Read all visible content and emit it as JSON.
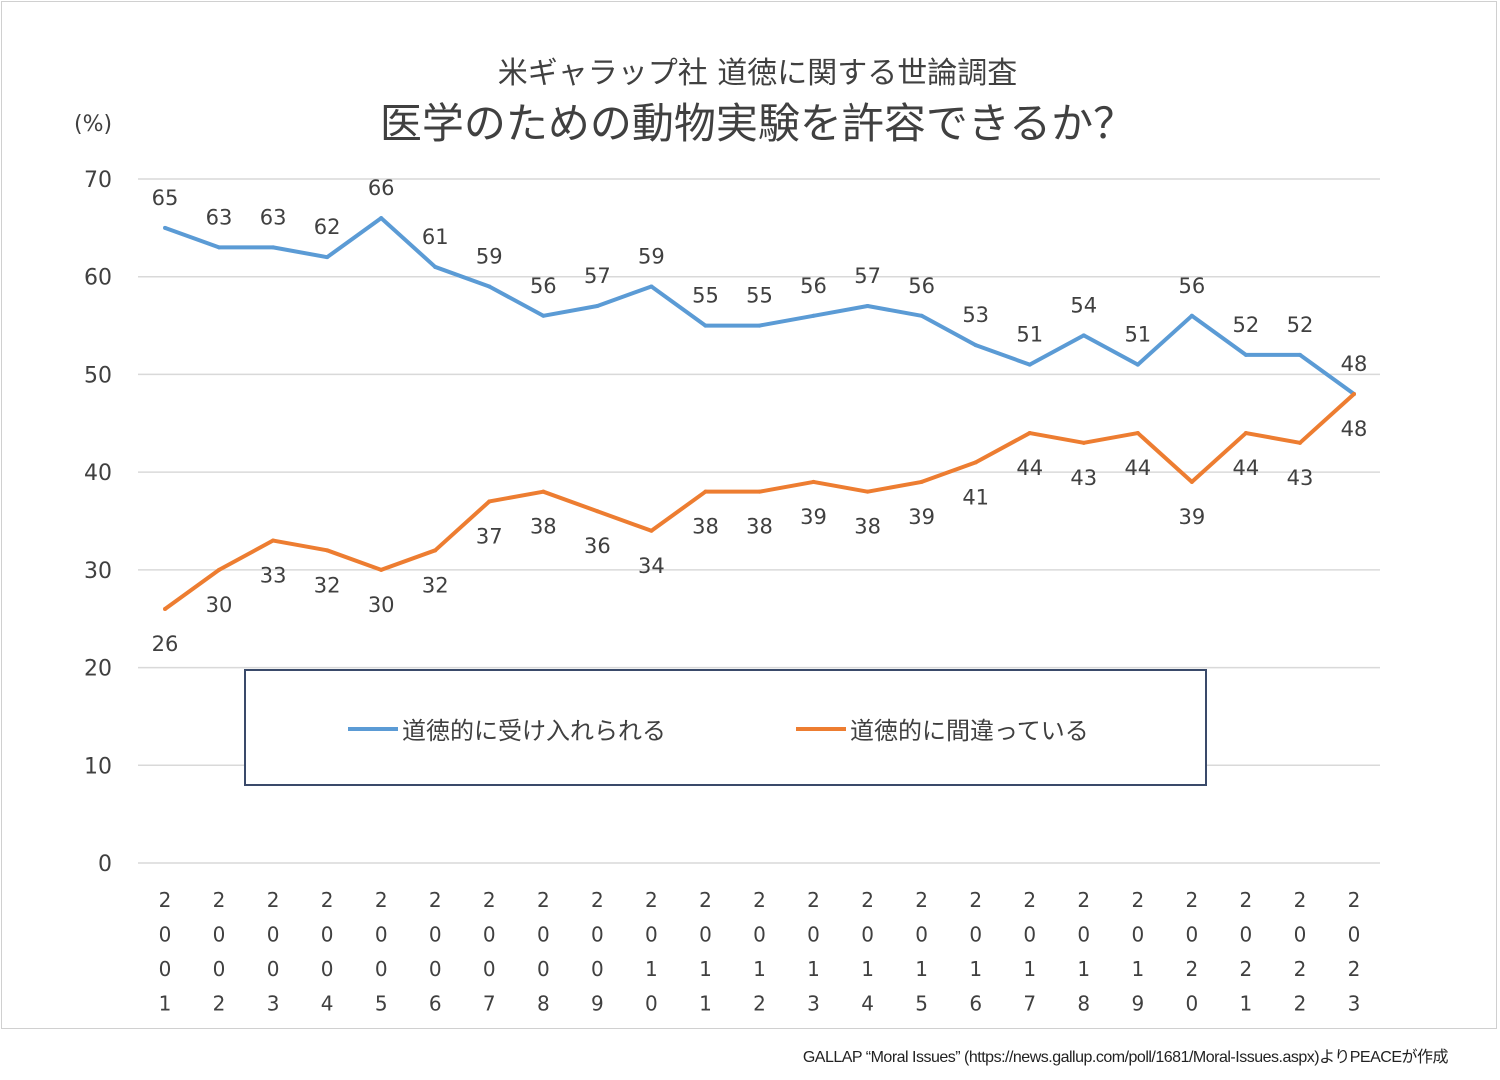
{
  "chart_data": {
    "type": "line",
    "title": "医学のための動物実験を許容できるか？",
    "subtitle": "米ギャラップ社 道徳に関する世論調査",
    "ylabel": "(%)",
    "xlabel": "",
    "ylim": [
      0,
      70
    ],
    "yticks": [
      0,
      10,
      20,
      30,
      40,
      50,
      60,
      70
    ],
    "grid": true,
    "legend_position": "bottom-center",
    "categories": [
      "2001",
      "2002",
      "2003",
      "2004",
      "2005",
      "2006",
      "2007",
      "2008",
      "2009",
      "2010",
      "2011",
      "2012",
      "2013",
      "2014",
      "2015",
      "2016",
      "2017",
      "2018",
      "2019",
      "2020",
      "2021",
      "2022",
      "2023"
    ],
    "series": [
      {
        "name": "道徳的に受け入れられる",
        "color": "#5b9bd5",
        "values": [
          65,
          63,
          63,
          62,
          66,
          61,
          59,
          56,
          57,
          59,
          55,
          55,
          56,
          57,
          56,
          53,
          51,
          54,
          51,
          56,
          52,
          52,
          48
        ]
      },
      {
        "name": "道徳的に間違っている",
        "color": "#ed7d31",
        "values": [
          26,
          30,
          33,
          32,
          30,
          32,
          37,
          38,
          36,
          34,
          38,
          38,
          39,
          38,
          39,
          41,
          44,
          43,
          44,
          39,
          44,
          43,
          48
        ]
      }
    ]
  },
  "source": "GALLAP “Moral Issues” (https://news.gallup.com/poll/1681/Moral-Issues.aspx)よりPEACEが作成"
}
